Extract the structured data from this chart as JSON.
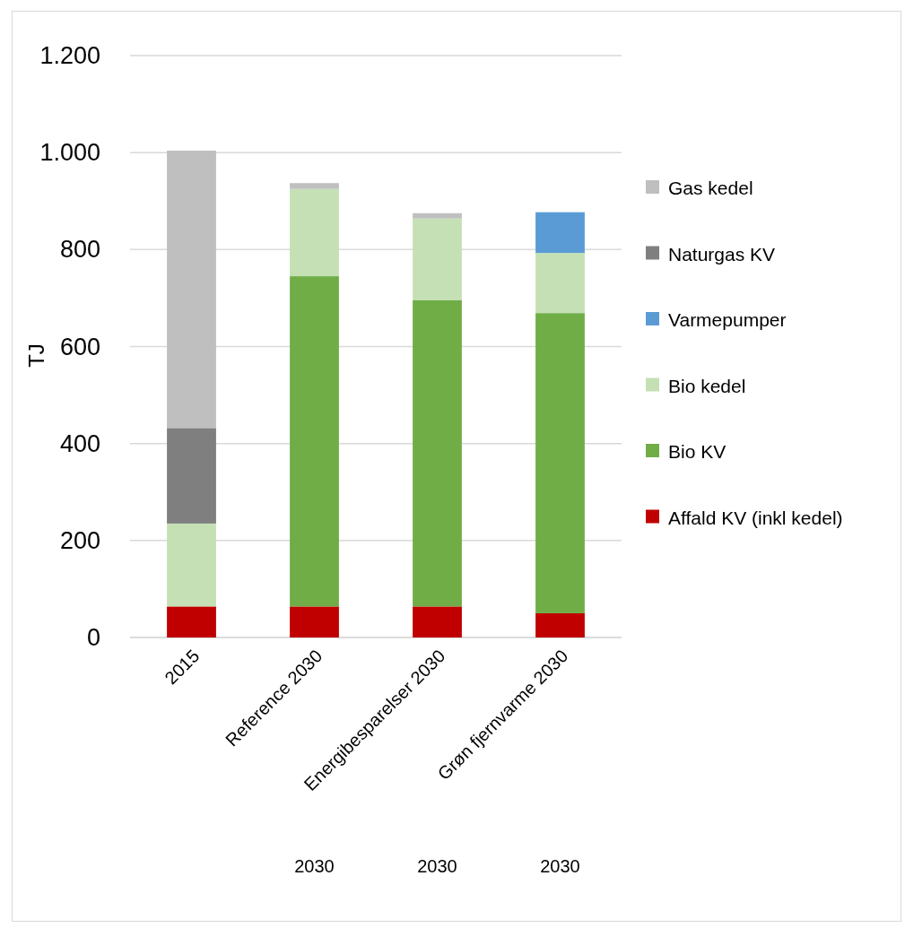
{
  "chart_data": {
    "type": "bar",
    "stacked": true,
    "categories": [
      "2015",
      "Reference 2030",
      "Energibesparelser 2030",
      "Grøn fjernvarme 2030"
    ],
    "series": [
      {
        "name": "Affald KV (inkl kedel)",
        "color": "#c00000",
        "values": [
          64,
          64,
          64,
          50
        ]
      },
      {
        "name": "Bio KV",
        "color": "#70ad47",
        "values": [
          null,
          681,
          632,
          619
        ]
      },
      {
        "name": "Bio kedel",
        "color": "#c5e0b4",
        "values": [
          171,
          180,
          168,
          124
        ]
      },
      {
        "name": "Varmepumper",
        "color": "#5b9bd5",
        "values": [
          null,
          null,
          null,
          84
        ]
      },
      {
        "name": "Naturgas KV",
        "color": "#7f7f7f",
        "values": [
          197,
          null,
          null,
          null
        ]
      },
      {
        "name": "Gas kedel",
        "color": "#bfbfbf",
        "values": [
          572,
          12,
          11,
          null
        ]
      }
    ],
    "ylabel": "TJ",
    "ylim": [
      0,
      1200
    ],
    "yticks": [
      0,
      200,
      400,
      600,
      800,
      {
        "value": 1000,
        "label": "1.000"
      },
      {
        "value": 1200,
        "label": "1.200"
      }
    ],
    "grid": "y",
    "legend": "right",
    "annotations": [
      "2030",
      "2030",
      "2030"
    ]
  }
}
